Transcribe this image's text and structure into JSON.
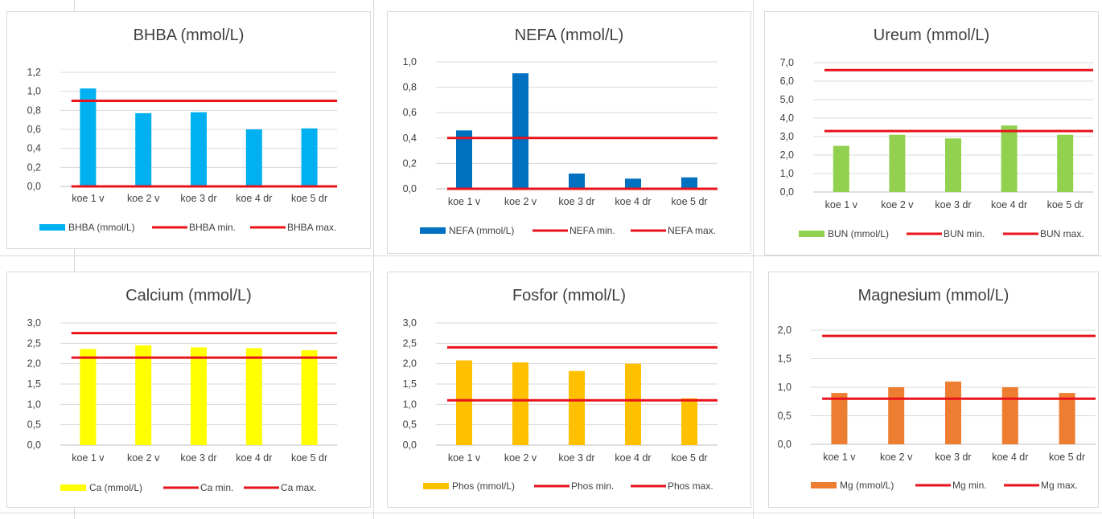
{
  "colors": {
    "line": "#e8131b",
    "axis": "#bfbfbf",
    "grid": "#d9d9d9",
    "text": "#404040"
  },
  "chart_data": [
    {
      "type": "bar",
      "title": "BHBA (mmol/L)",
      "categories": [
        "koe 1 v",
        "koe 2 v",
        "koe 3 dr",
        "koe 4 dr",
        "koe 5 dr"
      ],
      "ylim": [
        0,
        1.2
      ],
      "yticks": [
        "0,0",
        "0,2",
        "0,4",
        "0,6",
        "0,8",
        "1,0",
        "1,2"
      ],
      "grid": true,
      "legend_position": "bottom",
      "color": "#00b0f0",
      "series": [
        {
          "name": "BHBA (mmol/L)",
          "type": "bar",
          "values": [
            1.03,
            0.77,
            0.78,
            0.6,
            0.61
          ]
        },
        {
          "name": "BHBA min.",
          "type": "line",
          "values": [
            0,
            0,
            0,
            0,
            0
          ]
        },
        {
          "name": "BHBA max.",
          "type": "line",
          "values": [
            0.9,
            0.9,
            0.9,
            0.9,
            0.9
          ]
        }
      ]
    },
    {
      "type": "bar",
      "title": "NEFA (mmol/L)",
      "categories": [
        "koe 1 v",
        "koe 2 v",
        "koe 3 dr",
        "koe 4 dr",
        "koe 5 dr"
      ],
      "ylim": [
        0,
        1.0
      ],
      "yticks": [
        "0,0",
        "0,2",
        "0,4",
        "0,6",
        "0,8",
        "1,0"
      ],
      "grid": true,
      "legend_position": "bottom",
      "color": "#0070c0",
      "series": [
        {
          "name": "NEFA (mmol/L)",
          "type": "bar",
          "values": [
            0.46,
            0.91,
            0.12,
            0.08,
            0.09
          ]
        },
        {
          "name": "NEFA min.",
          "type": "line",
          "values": [
            0,
            0,
            0,
            0,
            0
          ]
        },
        {
          "name": "NEFA max.",
          "type": "line",
          "values": [
            0.4,
            0.4,
            0.4,
            0.4,
            0.4
          ]
        }
      ]
    },
    {
      "type": "bar",
      "title": "Ureum (mmol/L)",
      "categories": [
        "koe 1 v",
        "koe 2 v",
        "koe 3 dr",
        "koe 4 dr",
        "koe 5 dr"
      ],
      "ylim": [
        0,
        7.0
      ],
      "yticks": [
        "0,0",
        "1,0",
        "2,0",
        "3,0",
        "4,0",
        "5,0",
        "6,0",
        "7,0"
      ],
      "grid": true,
      "legend_position": "bottom",
      "color": "#92d050",
      "series": [
        {
          "name": "BUN (mmol/L)",
          "type": "bar",
          "values": [
            2.5,
            3.1,
            2.9,
            3.6,
            3.1
          ]
        },
        {
          "name": "BUN min.",
          "type": "line",
          "values": [
            3.3,
            3.3,
            3.3,
            3.3,
            3.3
          ]
        },
        {
          "name": "BUN max.",
          "type": "line",
          "values": [
            6.6,
            6.6,
            6.6,
            6.6,
            6.6
          ]
        }
      ]
    },
    {
      "type": "bar",
      "title": "Calcium (mmol/L)",
      "categories": [
        "koe 1 v",
        "koe 2 v",
        "koe 3 dr",
        "koe 4 dr",
        "koe 5 dr"
      ],
      "ylim": [
        0,
        3.0
      ],
      "yticks": [
        "0,0",
        "0,5",
        "1,0",
        "1,5",
        "2,0",
        "2,5",
        "3,0"
      ],
      "grid": true,
      "legend_position": "bottom",
      "color": "#ffff00",
      "series": [
        {
          "name": "Ca (mmol/L)",
          "type": "bar",
          "values": [
            2.36,
            2.45,
            2.4,
            2.38,
            2.33
          ]
        },
        {
          "name": "Ca min.",
          "type": "line",
          "values": [
            2.15,
            2.15,
            2.15,
            2.15,
            2.15
          ]
        },
        {
          "name": "Ca max.",
          "type": "line",
          "values": [
            2.75,
            2.75,
            2.75,
            2.75,
            2.75
          ]
        }
      ]
    },
    {
      "type": "bar",
      "title": "Fosfor (mmol/L)",
      "categories": [
        "koe 1 v",
        "koe 2 v",
        "koe 3 dr",
        "koe 4 dr",
        "koe 5 dr"
      ],
      "ylim": [
        0,
        3.0
      ],
      "yticks": [
        "0,0",
        "0,5",
        "1,0",
        "1,5",
        "2,0",
        "2,5",
        "3,0"
      ],
      "grid": true,
      "legend_position": "bottom",
      "color": "#ffc000",
      "series": [
        {
          "name": "Phos (mmol/L)",
          "type": "bar",
          "values": [
            2.08,
            2.03,
            1.82,
            2.0,
            1.15
          ]
        },
        {
          "name": "Phos min.",
          "type": "line",
          "values": [
            1.1,
            1.1,
            1.1,
            1.1,
            1.1
          ]
        },
        {
          "name": "Phos max.",
          "type": "line",
          "values": [
            2.4,
            2.4,
            2.4,
            2.4,
            2.4
          ]
        }
      ]
    },
    {
      "type": "bar",
      "title": "Magnesium (mmol/L)",
      "categories": [
        "koe 1 v",
        "koe 2 v",
        "koe 3 dr",
        "koe 4 dr",
        "koe 5 dr"
      ],
      "ylim": [
        0,
        2.0
      ],
      "yticks": [
        "0,0",
        "0,5",
        "1,0",
        "1,5",
        "2,0"
      ],
      "grid": true,
      "legend_position": "bottom",
      "color": "#ed7d31",
      "series": [
        {
          "name": "Mg (mmol/L)",
          "type": "bar",
          "values": [
            0.9,
            1.0,
            1.1,
            1.0,
            0.9
          ]
        },
        {
          "name": "Mg min.",
          "type": "line",
          "values": [
            0.8,
            0.8,
            0.8,
            0.8,
            0.8
          ]
        },
        {
          "name": "Mg max.",
          "type": "line",
          "values": [
            1.9,
            1.9,
            1.9,
            1.9,
            1.9
          ]
        }
      ]
    }
  ]
}
